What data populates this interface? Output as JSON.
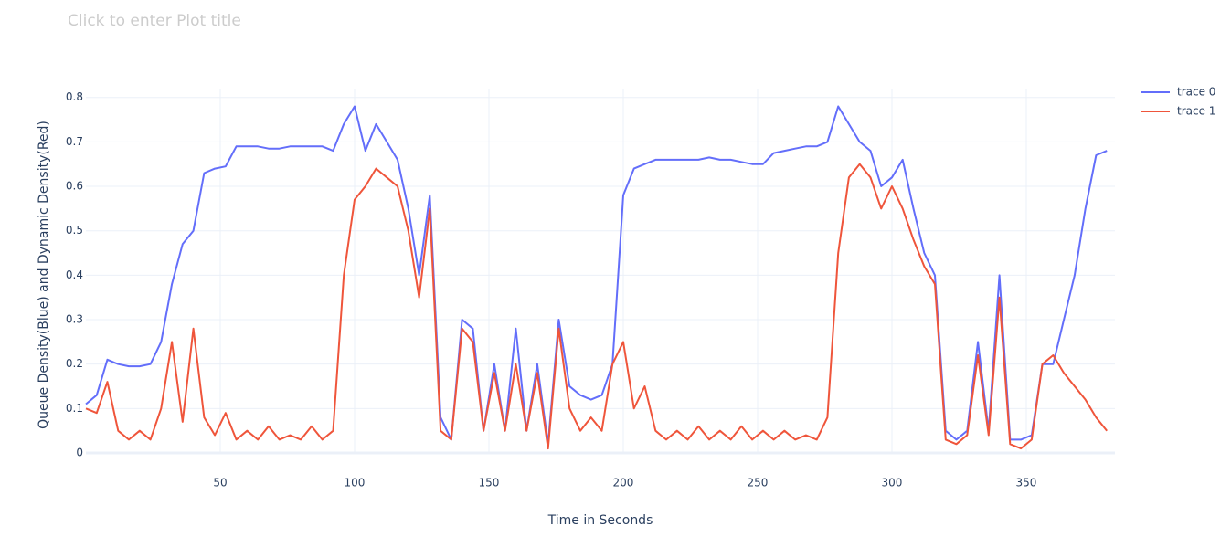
{
  "chart_data": {
    "type": "line",
    "title": "Click to enter Plot title",
    "xlabel": "Time in Seconds",
    "ylabel": "Queue Density(Blue) and Dynamic Density(Red)",
    "x": [
      0,
      4,
      8,
      12,
      16,
      20,
      24,
      28,
      32,
      36,
      40,
      44,
      48,
      52,
      56,
      60,
      64,
      68,
      72,
      76,
      80,
      84,
      88,
      92,
      96,
      100,
      104,
      108,
      112,
      116,
      120,
      124,
      128,
      132,
      136,
      140,
      144,
      148,
      152,
      156,
      160,
      164,
      168,
      172,
      176,
      180,
      184,
      188,
      192,
      196,
      200,
      204,
      208,
      212,
      216,
      220,
      224,
      228,
      232,
      236,
      240,
      244,
      248,
      252,
      256,
      260,
      264,
      268,
      272,
      276,
      280,
      284,
      288,
      292,
      296,
      300,
      304,
      308,
      312,
      316,
      320,
      324,
      328,
      332,
      336,
      340,
      344,
      348,
      352,
      356,
      360,
      364,
      368,
      372,
      376,
      380
    ],
    "series": [
      {
        "name": "trace 0",
        "color": "#636efa",
        "values": [
          0.11,
          0.13,
          0.21,
          0.2,
          0.195,
          0.195,
          0.2,
          0.25,
          0.38,
          0.47,
          0.5,
          0.63,
          0.64,
          0.645,
          0.69,
          0.69,
          0.69,
          0.685,
          0.685,
          0.69,
          0.69,
          0.69,
          0.69,
          0.68,
          0.74,
          0.78,
          0.68,
          0.74,
          0.7,
          0.66,
          0.55,
          0.4,
          0.58,
          0.08,
          0.03,
          0.3,
          0.28,
          0.05,
          0.2,
          0.05,
          0.28,
          0.05,
          0.2,
          0.02,
          0.3,
          0.15,
          0.13,
          0.12,
          0.13,
          0.2,
          0.58,
          0.64,
          0.65,
          0.66,
          0.66,
          0.66,
          0.66,
          0.66,
          0.665,
          0.66,
          0.66,
          0.655,
          0.65,
          0.65,
          0.675,
          0.68,
          0.685,
          0.69,
          0.69,
          0.7,
          0.78,
          0.74,
          0.7,
          0.68,
          0.6,
          0.62,
          0.66,
          0.55,
          0.45,
          0.4,
          0.05,
          0.03,
          0.05,
          0.25,
          0.05,
          0.4,
          0.03,
          0.03,
          0.04,
          0.2,
          0.2,
          0.3,
          0.4,
          0.55,
          0.67,
          0.68
        ]
      },
      {
        "name": "trace 1",
        "color": "#ef553b",
        "values": [
          0.1,
          0.09,
          0.16,
          0.05,
          0.03,
          0.05,
          0.03,
          0.1,
          0.25,
          0.07,
          0.28,
          0.08,
          0.04,
          0.09,
          0.03,
          0.05,
          0.03,
          0.06,
          0.03,
          0.04,
          0.03,
          0.06,
          0.03,
          0.05,
          0.4,
          0.57,
          0.6,
          0.64,
          0.62,
          0.6,
          0.5,
          0.35,
          0.55,
          0.05,
          0.03,
          0.28,
          0.25,
          0.05,
          0.18,
          0.05,
          0.2,
          0.05,
          0.18,
          0.01,
          0.28,
          0.1,
          0.05,
          0.08,
          0.05,
          0.2,
          0.25,
          0.1,
          0.15,
          0.05,
          0.03,
          0.05,
          0.03,
          0.06,
          0.03,
          0.05,
          0.03,
          0.06,
          0.03,
          0.05,
          0.03,
          0.05,
          0.03,
          0.04,
          0.03,
          0.08,
          0.45,
          0.62,
          0.65,
          0.62,
          0.55,
          0.6,
          0.55,
          0.48,
          0.42,
          0.38,
          0.03,
          0.02,
          0.04,
          0.22,
          0.04,
          0.35,
          0.02,
          0.01,
          0.03,
          0.2,
          0.22,
          0.18,
          0.15,
          0.12,
          0.08,
          0.05
        ]
      }
    ],
    "xlim": [
      0,
      383
    ],
    "ylim": [
      0,
      0.82
    ],
    "xticks": [
      50,
      100,
      150,
      200,
      250,
      300,
      350
    ],
    "yticks": [
      0,
      0.1,
      0.2,
      0.3,
      0.4,
      0.5,
      0.6,
      0.7,
      0.8
    ],
    "grid": true,
    "legend": "top-right"
  }
}
